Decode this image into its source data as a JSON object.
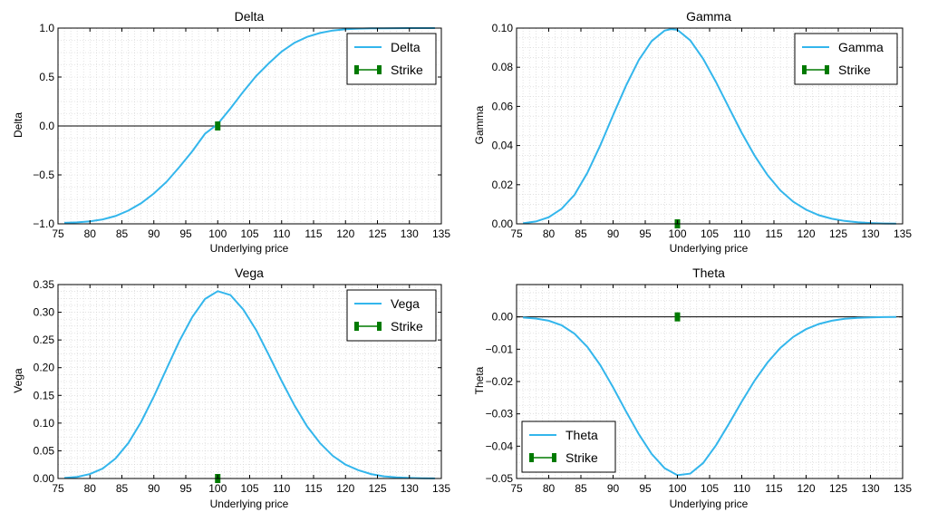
{
  "figure": {
    "background": "#ffffff"
  },
  "colors": {
    "curve": "#33b6ec",
    "strike": "#007a00",
    "zero_line": "#000000",
    "grid": "#d0d0d0"
  },
  "chart_data": [
    {
      "type": "line",
      "title": "Delta",
      "xlabel": "Underlying price",
      "ylabel": "Delta",
      "xlim": [
        75,
        135
      ],
      "ylim": [
        -1.0,
        1.0
      ],
      "xticks": [
        75,
        80,
        85,
        90,
        95,
        100,
        105,
        110,
        115,
        120,
        125,
        130,
        135
      ],
      "xtick_labels": [
        "75",
        "80",
        "85",
        "90",
        "95",
        "100",
        "105",
        "110",
        "115",
        "120",
        "125",
        "130",
        "135"
      ],
      "yticks": [
        -1.0,
        -0.5,
        0.0,
        0.5,
        1.0
      ],
      "ytick_labels": [
        "−1.0",
        "−0.5",
        "0.0",
        "0.5",
        "1.0"
      ],
      "grid": true,
      "zero_line": true,
      "legend_position": "top-right",
      "series": [
        {
          "name": "Delta",
          "x": [
            76,
            78,
            80,
            82,
            84,
            86,
            88,
            90,
            92,
            94,
            96,
            98,
            100,
            102,
            104,
            106,
            108,
            110,
            112,
            114,
            116,
            118,
            120,
            122,
            124,
            126,
            128,
            130,
            132,
            134
          ],
          "values": [
            -0.99,
            -0.985,
            -0.975,
            -0.955,
            -0.92,
            -0.865,
            -0.79,
            -0.69,
            -0.57,
            -0.42,
            -0.26,
            -0.08,
            0.02,
            0.18,
            0.35,
            0.51,
            0.64,
            0.76,
            0.85,
            0.91,
            0.95,
            0.975,
            0.988,
            0.994,
            0.997,
            0.998,
            0.999,
            1.0,
            1.0,
            1.0
          ]
        }
      ],
      "strike": {
        "label": "Strike",
        "x": 100,
        "y": 0.0
      }
    },
    {
      "type": "line",
      "title": "Gamma",
      "xlabel": "Underlying price",
      "ylabel": "Gamma",
      "xlim": [
        75,
        135
      ],
      "ylim": [
        0.0,
        0.1
      ],
      "xticks": [
        75,
        80,
        85,
        90,
        95,
        100,
        105,
        110,
        115,
        120,
        125,
        130,
        135
      ],
      "xtick_labels": [
        "75",
        "80",
        "85",
        "90",
        "95",
        "100",
        "105",
        "110",
        "115",
        "120",
        "125",
        "130",
        "135"
      ],
      "yticks": [
        0.0,
        0.02,
        0.04,
        0.06,
        0.08,
        0.1
      ],
      "ytick_labels": [
        "0.00",
        "0.02",
        "0.04",
        "0.06",
        "0.08",
        "0.10"
      ],
      "grid": true,
      "zero_line": false,
      "legend_position": "top-right",
      "series": [
        {
          "name": "Gamma",
          "x": [
            76,
            78,
            80,
            82,
            84,
            86,
            88,
            90,
            92,
            94,
            96,
            98,
            99,
            100,
            102,
            104,
            106,
            108,
            110,
            112,
            114,
            116,
            118,
            120,
            122,
            124,
            126,
            128,
            130,
            132,
            134
          ],
          "values": [
            0.0003,
            0.0012,
            0.0034,
            0.0077,
            0.0148,
            0.026,
            0.04,
            0.0555,
            0.0705,
            0.0837,
            0.0934,
            0.0987,
            0.0995,
            0.0991,
            0.0937,
            0.0843,
            0.0724,
            0.0594,
            0.0465,
            0.0348,
            0.0249,
            0.0171,
            0.0113,
            0.0072,
            0.0044,
            0.0026,
            0.0015,
            0.0008,
            0.0004,
            0.0002,
            0.0001
          ]
        }
      ],
      "strike": {
        "label": "Strike",
        "x": 100,
        "y": 0.0
      }
    },
    {
      "type": "line",
      "title": "Vega",
      "xlabel": "Underlying price",
      "ylabel": "Vega",
      "xlim": [
        75,
        135
      ],
      "ylim": [
        0.0,
        0.35
      ],
      "xticks": [
        75,
        80,
        85,
        90,
        95,
        100,
        105,
        110,
        115,
        120,
        125,
        130,
        135
      ],
      "xtick_labels": [
        "75",
        "80",
        "85",
        "90",
        "95",
        "100",
        "105",
        "110",
        "115",
        "120",
        "125",
        "130",
        "135"
      ],
      "yticks": [
        0.0,
        0.05,
        0.1,
        0.15,
        0.2,
        0.25,
        0.3,
        0.35
      ],
      "ytick_labels": [
        "0.00",
        "0.05",
        "0.10",
        "0.15",
        "0.20",
        "0.25",
        "0.30",
        "0.35"
      ],
      "grid": true,
      "zero_line": false,
      "legend_position": "top-right",
      "series": [
        {
          "name": "Vega",
          "x": [
            76,
            78,
            80,
            82,
            84,
            86,
            88,
            90,
            92,
            94,
            96,
            98,
            100,
            102,
            104,
            106,
            108,
            110,
            112,
            114,
            116,
            118,
            120,
            122,
            124,
            126,
            128,
            130,
            132,
            134
          ],
          "values": [
            0.001,
            0.003,
            0.008,
            0.018,
            0.036,
            0.064,
            0.102,
            0.148,
            0.198,
            0.248,
            0.291,
            0.324,
            0.338,
            0.331,
            0.305,
            0.268,
            0.223,
            0.176,
            0.132,
            0.094,
            0.064,
            0.041,
            0.025,
            0.015,
            0.008,
            0.004,
            0.002,
            0.001,
            0.0005,
            0.0002
          ]
        }
      ],
      "strike": {
        "label": "Strike",
        "x": 100,
        "y": 0.0
      }
    },
    {
      "type": "line",
      "title": "Theta",
      "xlabel": "Underlying price",
      "ylabel": "Theta",
      "xlim": [
        75,
        135
      ],
      "ylim": [
        -0.05,
        0.01
      ],
      "xticks": [
        75,
        80,
        85,
        90,
        95,
        100,
        105,
        110,
        115,
        120,
        125,
        130,
        135
      ],
      "xtick_labels": [
        "75",
        "80",
        "85",
        "90",
        "95",
        "100",
        "105",
        "110",
        "115",
        "120",
        "125",
        "130",
        "135"
      ],
      "yticks": [
        -0.05,
        -0.04,
        -0.03,
        -0.02,
        -0.01,
        0.0
      ],
      "ytick_labels": [
        "−0.05",
        "−0.04",
        "−0.03",
        "−0.02",
        "−0.01",
        "0.00"
      ],
      "grid": true,
      "zero_line": true,
      "legend_position": "bottom-left",
      "series": [
        {
          "name": "Theta",
          "x": [
            76,
            78,
            80,
            82,
            84,
            86,
            88,
            90,
            92,
            94,
            96,
            98,
            100,
            102,
            104,
            106,
            108,
            110,
            112,
            114,
            116,
            118,
            120,
            122,
            124,
            126,
            128,
            130,
            132,
            134
          ],
          "values": [
            -0.0002,
            -0.0005,
            -0.0012,
            -0.0026,
            -0.0052,
            -0.0093,
            -0.0149,
            -0.0218,
            -0.0292,
            -0.0363,
            -0.0424,
            -0.0468,
            -0.049,
            -0.0485,
            -0.0452,
            -0.0397,
            -0.0331,
            -0.0262,
            -0.0197,
            -0.0141,
            -0.0096,
            -0.0062,
            -0.0038,
            -0.0022,
            -0.0012,
            -0.0006,
            -0.0003,
            -0.00015,
            -7e-05,
            -3e-05
          ]
        }
      ],
      "strike": {
        "label": "Strike",
        "x": 100,
        "y": 0.0
      }
    }
  ]
}
